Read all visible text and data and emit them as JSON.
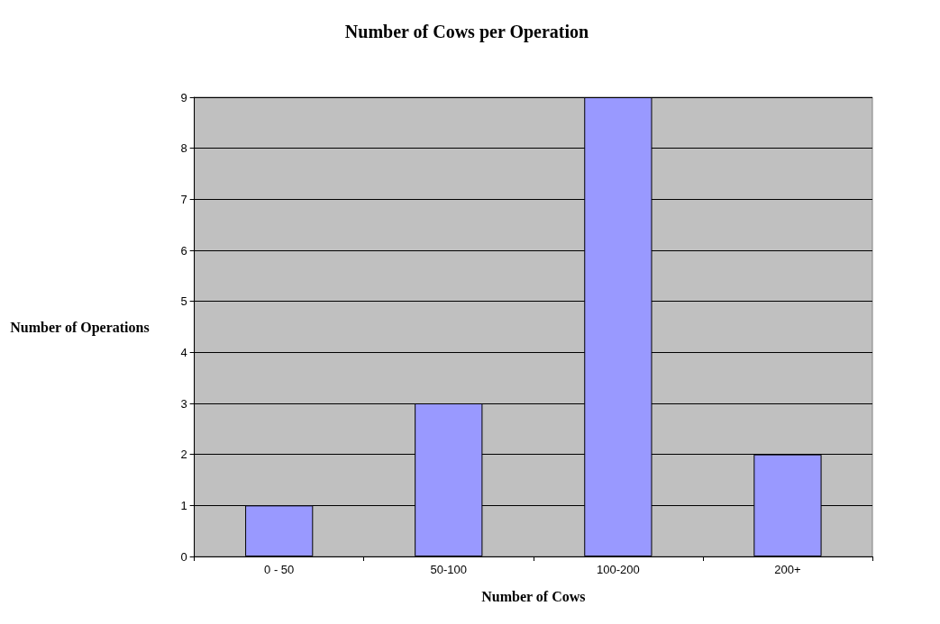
{
  "chart_data": {
    "type": "bar",
    "title": "Number of Cows per Operation",
    "xlabel": "Number of Cows",
    "ylabel": "Number of Operations",
    "categories": [
      "0 - 50",
      "50-100",
      "100-200",
      "200+"
    ],
    "values": [
      1,
      3,
      9,
      2
    ],
    "color": "#9999ff",
    "ylim": [
      0,
      9
    ],
    "yticks": [
      0,
      1,
      2,
      3,
      4,
      5,
      6,
      7,
      8,
      9
    ],
    "grid": "y"
  }
}
